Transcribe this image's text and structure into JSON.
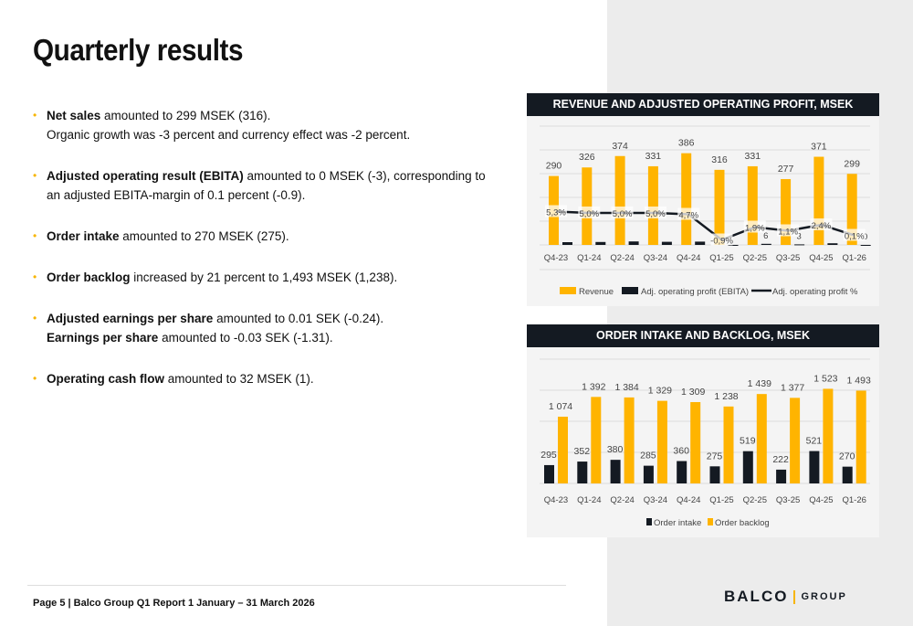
{
  "title": "Quarterly results",
  "bullets": [
    {
      "bold": "Net sales",
      "text": " amounted to 299 MSEK (316).",
      "line2": "Organic growth was -3 percent and currency effect was -2 percent.",
      "line2_bold": ""
    },
    {
      "bold": "Adjusted operating result (EBITA)",
      "text": " amounted to 0 MSEK (-3), corresponding to",
      "line2": "an adjusted EBITA-margin of 0.1 percent (-0.9).",
      "line2_bold": ""
    },
    {
      "bold": "Order intake",
      "text": " amounted to 270 MSEK (275).",
      "line2": "",
      "line2_bold": ""
    },
    {
      "bold": "Order backlog",
      "text": " increased by 21 percent to 1,493 MSEK (1,238).",
      "line2": "",
      "line2_bold": ""
    },
    {
      "bold": "Adjusted earnings per share",
      "text": " amounted to 0.01 SEK (-0.24).",
      "line2": " amounted to -0.03 SEK (-1.31).",
      "line2_bold": "Earnings per share"
    },
    {
      "bold": "Operating cash flow",
      "text": " amounted to 32 MSEK (1).",
      "line2": "",
      "line2_bold": ""
    }
  ],
  "footer": "Page 5 | Balco Group Q1 Report 1 January – 31 March 2026",
  "logo": {
    "main": "BALCO",
    "sub": "GROUP"
  },
  "colors": {
    "orange": "#ffb400",
    "dark": "#141a22",
    "panel": "#ececec"
  },
  "chart_data": [
    {
      "type": "bar+line",
      "title": "REVENUE AND ADJUSTED OPERATING PROFIT, MSEK",
      "categories": [
        "Q4-23",
        "Q1-24",
        "Q2-24",
        "Q3-24",
        "Q4-24",
        "Q1-25",
        "Q2-25",
        "Q3-25",
        "Q4-25",
        "Q1-26"
      ],
      "series": [
        {
          "name": "Revenue",
          "type": "bar",
          "color": "#ffb400",
          "values": [
            290,
            326,
            374,
            331,
            386,
            316,
            331,
            277,
            371,
            299
          ],
          "labels": [
            "290",
            "326",
            "374",
            "331",
            "386",
            "316",
            "331",
            "277",
            "371",
            "299"
          ]
        },
        {
          "name": "Adj. operating profit (EBITA)",
          "type": "bar",
          "color": "#141a22",
          "values": [
            15,
            16,
            19,
            17,
            18,
            -3,
            6,
            3,
            9,
            0
          ],
          "labels": [
            "",
            "",
            "",
            "",
            "",
            "",
            "6",
            "3",
            "",
            "0"
          ]
        },
        {
          "name": "Adj. operating profit %",
          "type": "line",
          "color": "#141a22",
          "values": [
            5.3,
            5.0,
            5.0,
            5.0,
            4.7,
            -0.9,
            1.9,
            1.1,
            2.4,
            0.1
          ],
          "labels": [
            "5,3%",
            "5,0%",
            "5,0%",
            "5,0%",
            "4,7%",
            "-0,9%",
            "1,9%",
            "1,1%",
            "2,4%",
            "0,1%"
          ]
        }
      ],
      "ylim": [
        0,
        400
      ],
      "grid": true,
      "legend": "bottom"
    },
    {
      "type": "bar",
      "title": "ORDER INTAKE AND BACKLOG, MSEK",
      "categories": [
        "Q4-23",
        "Q1-24",
        "Q2-24",
        "Q3-24",
        "Q4-24",
        "Q1-25",
        "Q2-25",
        "Q3-25",
        "Q4-25",
        "Q1-26"
      ],
      "series": [
        {
          "name": "Order intake",
          "color": "#141a22",
          "values": [
            295,
            352,
            380,
            285,
            360,
            275,
            519,
            222,
            521,
            270
          ],
          "labels": [
            "295",
            "352",
            "380",
            "285",
            "360",
            "275",
            "519",
            "222",
            "521",
            "270"
          ]
        },
        {
          "name": "Order backlog",
          "color": "#ffb400",
          "values": [
            1074,
            1392,
            1384,
            1329,
            1309,
            1238,
            1439,
            1377,
            1523,
            1493
          ],
          "labels": [
            "1 074",
            "1 392",
            "1 384",
            "1 329",
            "1 309",
            "1 238",
            "1 439",
            "1 377",
            "1 523",
            "1 493"
          ]
        }
      ],
      "ylim": [
        0,
        2000
      ],
      "grid": true,
      "legend": "bottom"
    }
  ]
}
